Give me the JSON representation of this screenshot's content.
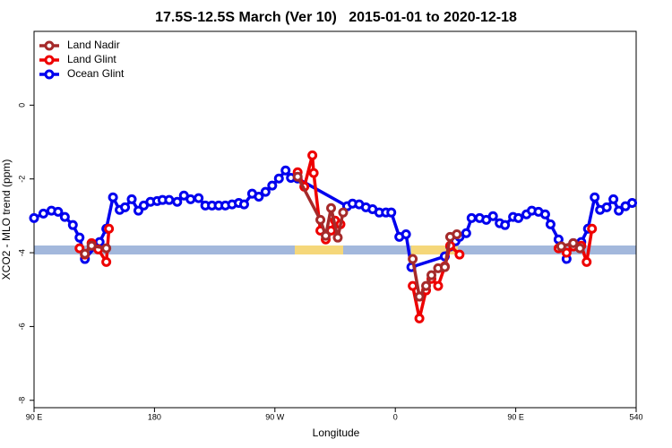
{
  "chart_data": {
    "type": "line",
    "title": "17.5S-12.5S March (Ver 10)   2015-01-01 to 2020-12-18",
    "xlabel": "Longitude",
    "ylabel": "XCO2 - MLO trend (ppm)",
    "xlim": [
      90,
      540
    ],
    "ylim": [
      -8.2,
      2.0
    ],
    "xticks": [
      {
        "value": 90,
        "label": "90 E"
      },
      180,
      {
        "value": 270,
        "label": "90 W"
      },
      {
        "value": 360,
        "label": "0"
      },
      {
        "value": 450,
        "label": "90 E"
      },
      540
    ],
    "yticks": [
      -8,
      -6,
      -4,
      -2,
      0
    ],
    "legend": "top-left",
    "series": [
      {
        "name": "Land Nadir",
        "color": "#a52a2a",
        "x": [
          128,
          133,
          144,
          null,
          287,
          304,
          308,
          312,
          317,
          321,
          null,
          373,
          378,
          383,
          387,
          392,
          397,
          401,
          406,
          null,
          484,
          493,
          498
        ],
        "values": [
          -4.03,
          -3.81,
          -3.88,
          null,
          -1.94,
          -3.11,
          -3.54,
          -2.79,
          -3.59,
          -2.91,
          null,
          -4.17,
          -5.19,
          -4.9,
          -4.61,
          -4.42,
          -4.39,
          -3.57,
          -3.5,
          null,
          -3.83,
          -3.74,
          -3.88
        ]
      },
      {
        "name": "Land Glint",
        "color": "#ee0000",
        "x": [
          124,
          128,
          133,
          138,
          144,
          146,
          null,
          287,
          292,
          298,
          299,
          304,
          308,
          312,
          315,
          319,
          null,
          373,
          378,
          383,
          387,
          392,
          397,
          401,
          408,
          null,
          482,
          488,
          493,
          499,
          503,
          507
        ],
        "values": [
          -3.88,
          -4.05,
          -3.74,
          -3.91,
          -4.25,
          -3.35,
          null,
          -1.82,
          -2.21,
          -1.36,
          -1.84,
          -3.4,
          -3.64,
          -3.4,
          -3.13,
          -3.23,
          null,
          -4.9,
          -5.78,
          -5.02,
          -4.71,
          -4.9,
          -4.37,
          -3.81,
          -4.05,
          null,
          -3.88,
          -4.0,
          -3.83,
          -3.81,
          -4.25,
          -3.35
        ]
      },
      {
        "name": "Ocean Glint",
        "color": "#0000ee",
        "x": [
          90,
          97,
          103,
          108,
          113,
          119,
          124,
          128,
          139,
          144,
          149,
          154,
          158,
          163,
          168,
          172,
          177,
          182,
          186,
          191,
          197,
          202,
          207,
          213,
          218,
          223,
          228,
          233,
          238,
          243,
          247,
          253,
          258,
          263,
          268,
          273,
          278,
          282,
          287,
          324,
          328,
          333,
          338,
          343,
          348,
          353,
          357,
          363,
          368,
          372,
          397,
          401,
          405,
          408,
          413,
          417,
          423,
          428,
          433,
          438,
          442,
          448,
          452,
          458,
          462,
          467,
          472,
          476,
          482,
          488,
          493,
          499,
          504,
          509,
          513,
          518,
          523,
          527,
          532,
          537
        ],
        "values": [
          -3.06,
          -2.94,
          -2.86,
          -2.89,
          -3.03,
          -3.25,
          -3.59,
          -4.17,
          -3.71,
          -3.35,
          -2.5,
          -2.84,
          -2.77,
          -2.55,
          -2.86,
          -2.72,
          -2.62,
          -2.6,
          -2.57,
          -2.57,
          -2.62,
          -2.45,
          -2.55,
          -2.52,
          -2.72,
          -2.72,
          -2.72,
          -2.72,
          -2.69,
          -2.65,
          -2.69,
          -2.4,
          -2.48,
          -2.35,
          -2.18,
          -1.99,
          -1.77,
          -1.97,
          -1.99,
          -2.74,
          -2.67,
          -2.69,
          -2.77,
          -2.82,
          -2.91,
          -2.91,
          -2.91,
          -3.57,
          -3.5,
          -4.39,
          -4.1,
          -3.83,
          -3.69,
          -3.57,
          -3.47,
          -3.06,
          -3.06,
          -3.11,
          -3.01,
          -3.2,
          -3.25,
          -3.03,
          -3.06,
          -2.96,
          -2.86,
          -2.89,
          -2.96,
          -3.23,
          -3.64,
          -4.17,
          -3.74,
          -3.71,
          -3.35,
          -2.5,
          -2.84,
          -2.77,
          -2.55,
          -2.86,
          -2.74,
          -2.65
        ]
      }
    ]
  }
}
